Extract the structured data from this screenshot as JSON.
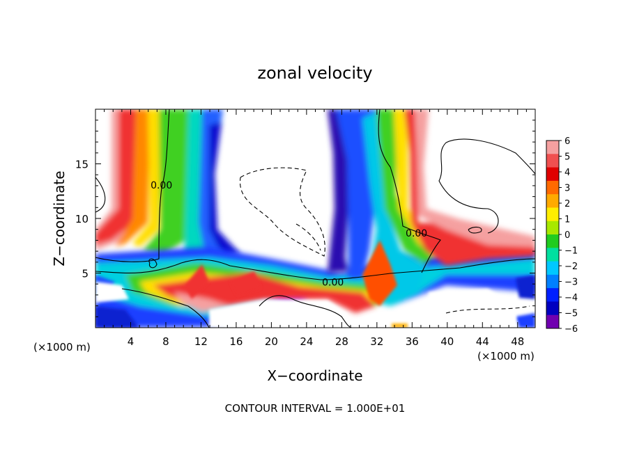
{
  "chart_data": {
    "type": "heatmap",
    "title": "zonal velocity",
    "xlabel": "X−coordinate",
    "ylabel": "Z−coordinate",
    "x_unit_left": "(×1000 m)",
    "x_unit_right": "(×1000 m)",
    "footer": "CONTOUR INTERVAL = 1.000E+01",
    "xlim": [
      0,
      50
    ],
    "ylim": [
      0,
      20
    ],
    "xticks": [
      4,
      8,
      12,
      16,
      20,
      24,
      28,
      32,
      36,
      40,
      44,
      48
    ],
    "xtick_labels": [
      "4",
      "8",
      "12",
      "16",
      "20",
      "24",
      "28",
      "32",
      "36",
      "40",
      "44",
      "48"
    ],
    "yticks": [
      5,
      10,
      15
    ],
    "ytick_labels": [
      "5",
      "10",
      "15"
    ],
    "colorbar": {
      "levels": [
        6,
        5,
        4,
        3,
        2,
        1,
        0,
        -1,
        -2,
        -3,
        -4,
        -5,
        -6
      ],
      "labels": [
        "6",
        "5",
        "4",
        "3",
        "2",
        "1",
        "0",
        "−1",
        "−2",
        "−3",
        "−4",
        "−5",
        "−6"
      ],
      "colors": [
        "#f5a0a0",
        "#f05050",
        "#e00000",
        "#ff6a00",
        "#ffaa00",
        "#ffee00",
        "#a8e800",
        "#20cc20",
        "#00e0a0",
        "#00c8ff",
        "#0080ff",
        "#0020ff",
        "#0000c0",
        "#7000b0"
      ]
    },
    "contour_labels": [
      {
        "text": "0.00",
        "x": 7.5,
        "y": 13.0
      },
      {
        "text": "0.00",
        "x": 36.5,
        "y": 8.6
      },
      {
        "text": "0.00",
        "x": 27.0,
        "y": 4.1
      }
    ],
    "grid": false,
    "colorbar_placement": "right"
  }
}
